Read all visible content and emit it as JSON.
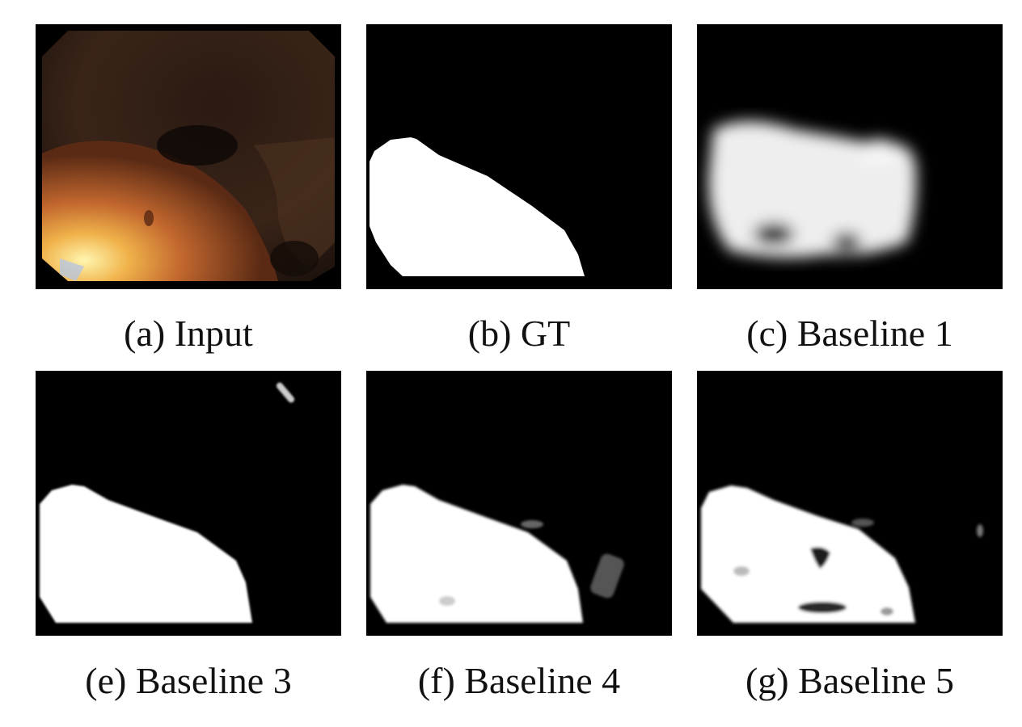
{
  "figure": {
    "panels": [
      {
        "id": "a",
        "caption": "(a) Input"
      },
      {
        "id": "b",
        "caption": "(b) GT"
      },
      {
        "id": "c",
        "caption": "(c) Baseline 1"
      },
      {
        "id": "e",
        "caption": "(e) Baseline 3"
      },
      {
        "id": "f",
        "caption": "(f) Baseline 4"
      },
      {
        "id": "g",
        "caption": "(g) Baseline 5"
      }
    ]
  }
}
